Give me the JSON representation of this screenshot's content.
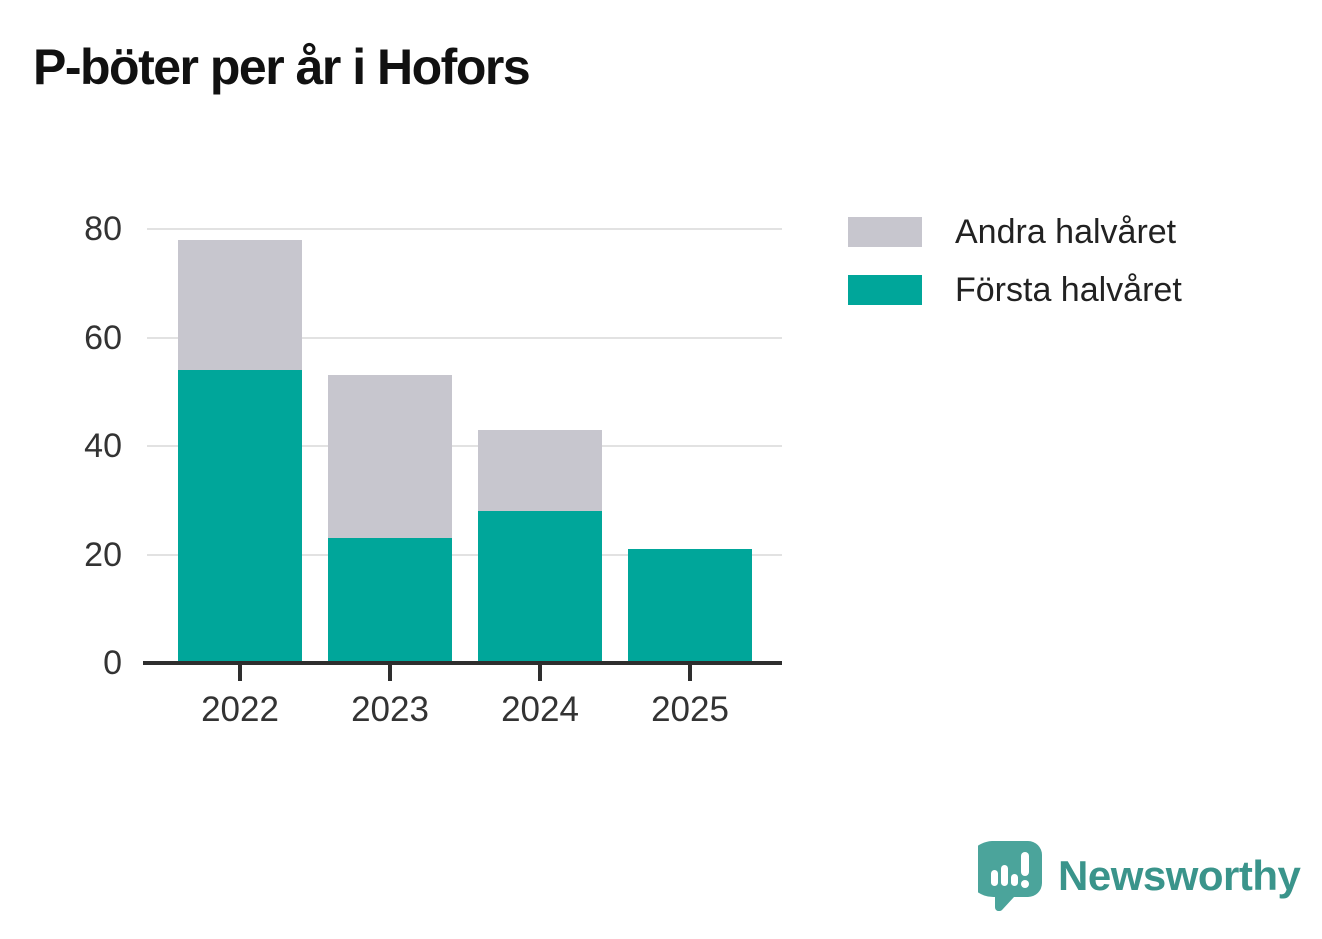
{
  "title": "P-böter per år i Hofors",
  "chart_data": {
    "type": "bar",
    "stacked": true,
    "categories": [
      "2022",
      "2023",
      "2024",
      "2025"
    ],
    "series": [
      {
        "name": "Första halvåret",
        "color": "#00a69a",
        "values": [
          54,
          23,
          28,
          21
        ]
      },
      {
        "name": "Andra halvåret",
        "color": "#c7c6ce",
        "values": [
          24,
          30,
          15,
          0
        ]
      }
    ],
    "totals": [
      78,
      53,
      43,
      21
    ],
    "title": "P-böter per år i Hofors",
    "xlabel": "",
    "ylabel": "",
    "ylim": [
      0,
      80
    ],
    "yticks": [
      0,
      20,
      40,
      60,
      80
    ],
    "grid": true,
    "gridline_color": "#e2e2e2",
    "axis_color": "#2e2e2e",
    "legend_position": "right"
  },
  "legend": {
    "items": [
      {
        "label": "Andra halvåret",
        "color": "#c7c6ce"
      },
      {
        "label": "Första halvåret",
        "color": "#00a69a"
      }
    ]
  },
  "branding": {
    "logo_text": "Newsworthy",
    "text_color": "#3a948b",
    "icon_color": "#4ba49b"
  }
}
